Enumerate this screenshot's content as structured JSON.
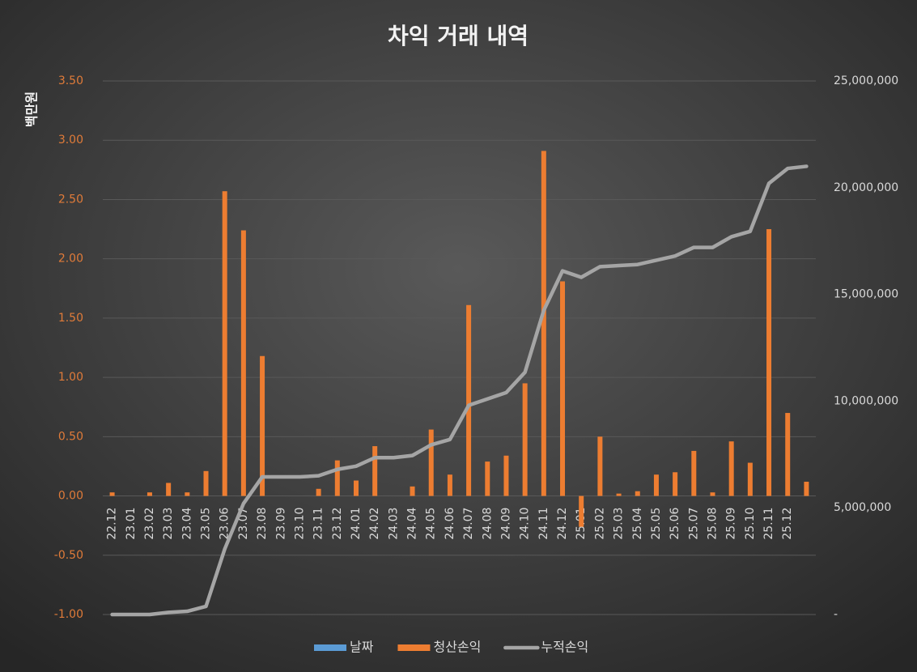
{
  "chart_data": {
    "type": "bar",
    "title": "차익 거래 내역",
    "y_label": "백만원",
    "categories": [
      "22.12",
      "23.01",
      "23.02",
      "23.03",
      "23.04",
      "23.05",
      "23.06",
      "23.07",
      "23.08",
      "23.09",
      "23.10",
      "23.11",
      "23.12",
      "24.01",
      "24.02",
      "24.03",
      "24.04",
      "24.05",
      "24.06",
      "24.07",
      "24.08",
      "24.09",
      "24.10",
      "24.11",
      "24.12",
      "25.01",
      "25.02",
      "25.03",
      "25.04",
      "25.05",
      "25.06",
      "25.07",
      "25.08",
      "25.09",
      "25.10",
      "25.11",
      "25.12",
      null
    ],
    "series": [
      {
        "name": "날짜",
        "color": "#5b9bd5"
      },
      {
        "name": "청산손익",
        "color": "#ed7d31",
        "type": "bar",
        "axis": "y",
        "values": [
          0.03,
          0,
          0.03,
          0.11,
          0.03,
          0.21,
          2.57,
          2.24,
          1.18,
          0,
          0,
          0.06,
          0.3,
          0.13,
          0.42,
          0,
          0.08,
          0.56,
          0.18,
          1.61,
          0.29,
          0.34,
          0.95,
          2.91,
          1.81,
          -0.26,
          0.5,
          0.02,
          0.04,
          0.18,
          0.2,
          0.38,
          0.03,
          0.46,
          0.28,
          2.25,
          0.7,
          0.12
        ]
      },
      {
        "name": "누적손익",
        "color": "#a5a5a5",
        "type": "line",
        "axis": "y2",
        "values": [
          0,
          0,
          0,
          100000,
          150000,
          380000,
          3070000,
          5200000,
          6450000,
          6450000,
          6450000,
          6500000,
          6800000,
          6950000,
          7350000,
          7350000,
          7450000,
          7950000,
          8200000,
          9800000,
          10100000,
          10400000,
          11350000,
          14250000,
          16100000,
          15800000,
          16300000,
          16350000,
          16400000,
          16600000,
          16800000,
          17200000,
          17200000,
          17700000,
          17950000,
          20200000,
          20900000,
          21000000
        ]
      }
    ],
    "ylim": [
      -1,
      3.5
    ],
    "yticks": [
      {
        "value": -1,
        "label": "-1.00"
      },
      {
        "value": -0.5,
        "label": "-0.50"
      },
      {
        "value": 0,
        "label": "0.00"
      },
      {
        "value": 0.5,
        "label": "0.50"
      },
      {
        "value": 1,
        "label": "1.00"
      },
      {
        "value": 1.5,
        "label": "1.50"
      },
      {
        "value": 2,
        "label": "2.00"
      },
      {
        "value": 2.5,
        "label": "2.50"
      },
      {
        "value": 3,
        "label": "3.00"
      },
      {
        "value": 3.5,
        "label": "3.50"
      }
    ],
    "y2lim": [
      0,
      25000000
    ],
    "y2ticks": [
      {
        "value": 0,
        "label": "-"
      },
      {
        "value": 5000000,
        "label": "5,000,000"
      },
      {
        "value": 10000000,
        "label": "10,000,000"
      },
      {
        "value": 15000000,
        "label": "15,000,000"
      },
      {
        "value": 20000000,
        "label": "20,000,000"
      },
      {
        "value": 25000000,
        "label": "25,000,000"
      }
    ],
    "grid": true,
    "legend": "bottom"
  }
}
